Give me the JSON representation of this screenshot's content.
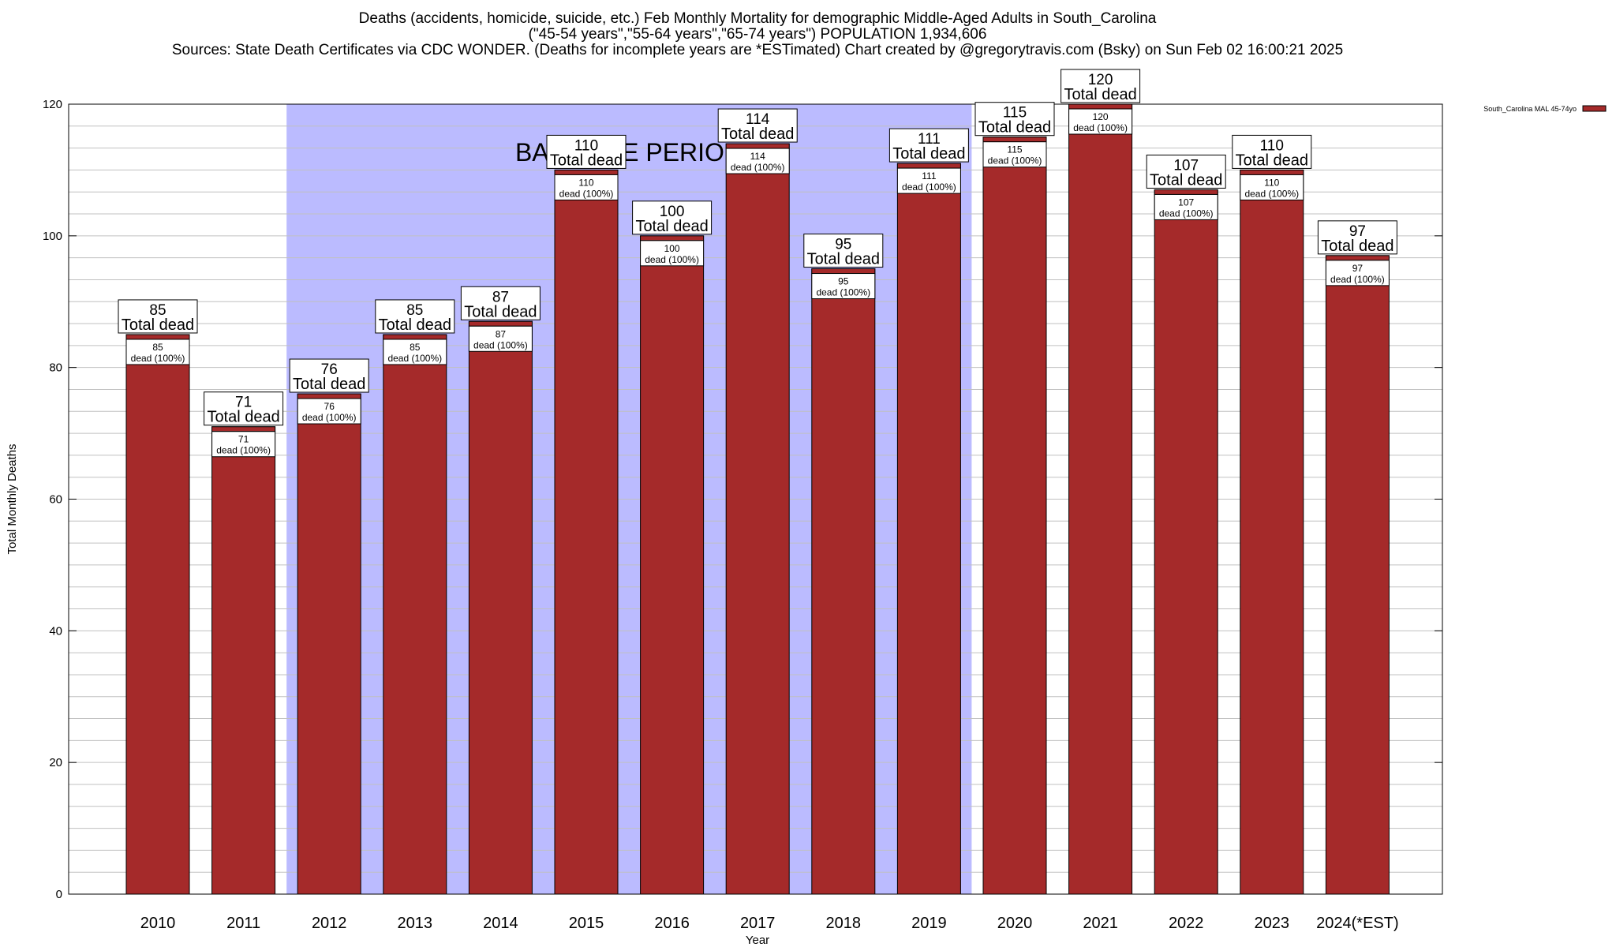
{
  "titles": {
    "line1": "Deaths (accidents, homicide, suicide, etc.) Feb Monthly Mortality for demographic Middle-Aged Adults in South_Carolina",
    "line2": "(\"45-54 years\",\"55-64 years\",\"65-74 years\") POPULATION 1,934,606",
    "line3": "Sources: State Death Certificates via CDC WONDER. (Deaths for incomplete years are *ESTimated)                Chart created by @gregorytravis.com (Bsky) on Sun Feb 02 16:00:21 2025"
  },
  "colors": {
    "bar": "#a52a2a",
    "baseline_band": "#bbbbff",
    "grid": "#c0c0c0"
  },
  "chart_data": {
    "type": "bar",
    "xlabel": "Year",
    "ylabel": "Total Monthly Deaths",
    "ylim": [
      0,
      120
    ],
    "yticks": [
      0,
      20,
      40,
      60,
      80,
      100,
      120
    ],
    "grid": true,
    "legend": {
      "label": "South_Carolina MAL 45-74yo",
      "placement": "top-right outside"
    },
    "band": {
      "label": "BASELINE PERIOD",
      "from": "2012",
      "to": "2019"
    },
    "categories": [
      "2010",
      "2011",
      "2012",
      "2013",
      "2014",
      "2015",
      "2016",
      "2017",
      "2018",
      "2019",
      "2020",
      "2021",
      "2022",
      "2023",
      "2024(*EST)"
    ],
    "series": [
      {
        "name": "South_Carolina MAL 45-74yo",
        "values": [
          85,
          71,
          76,
          85,
          87,
          110,
          100,
          114,
          95,
          111,
          115,
          120,
          107,
          110,
          97
        ]
      }
    ],
    "total_label_suffix": "Total dead",
    "inner_label_suffix": "dead (100%)"
  }
}
